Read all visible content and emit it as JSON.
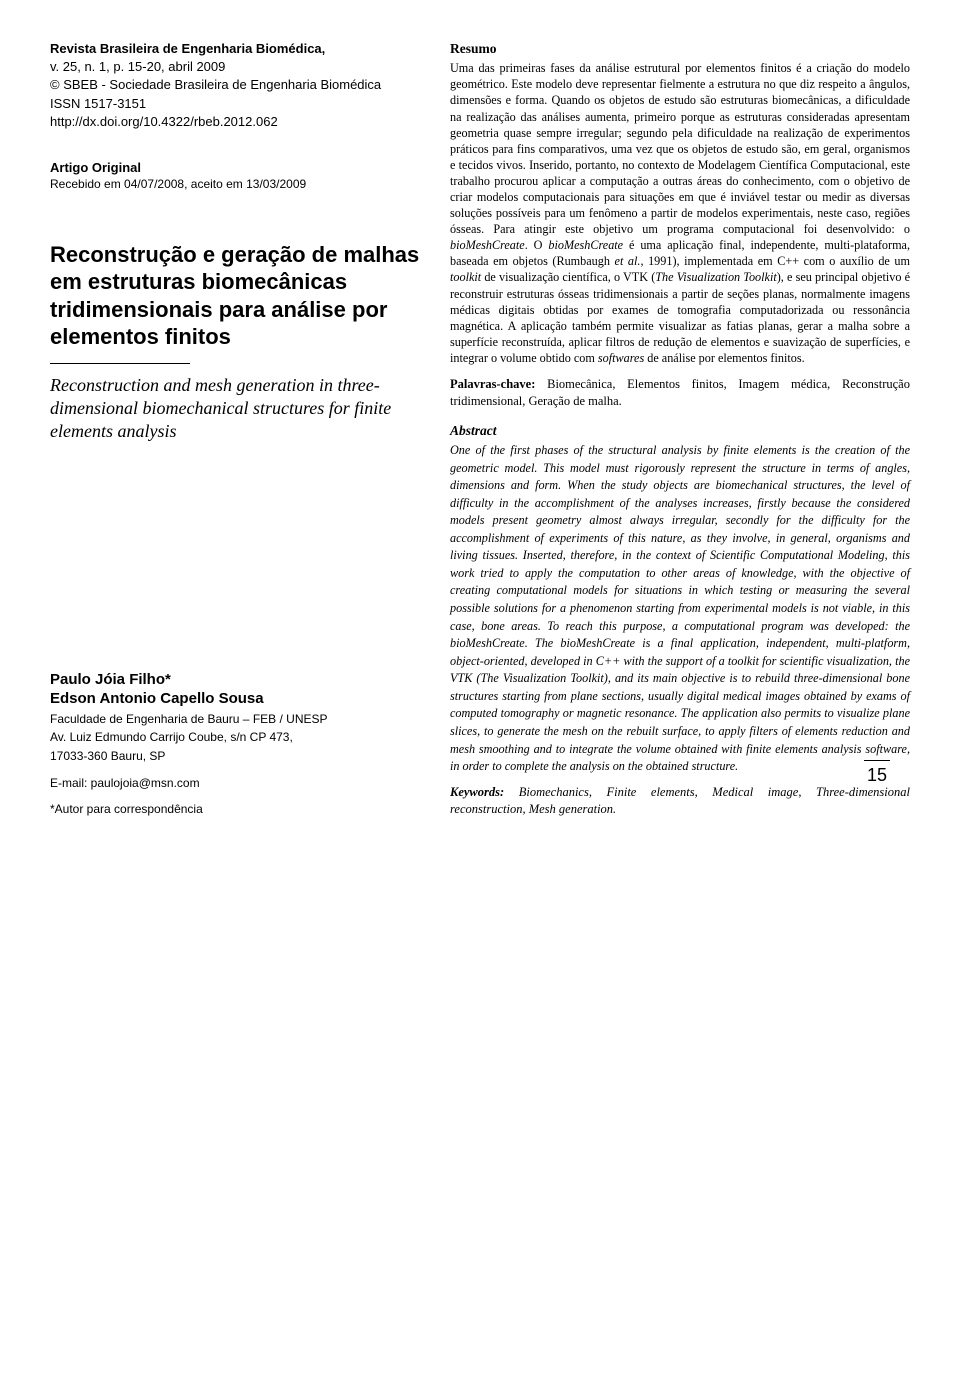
{
  "meta": {
    "journal_title": "Revista Brasileira de Engenharia Biomédica,",
    "issue": "v. 25, n. 1, p. 15-20, abril 2009",
    "copyright": "© SBEB - Sociedade Brasileira de Engenharia Biomédica",
    "issn": "ISSN 1517-3151",
    "doi": "http://dx.doi.org/10.4322/rbeb.2012.062",
    "article_type": "Artigo Original",
    "received": "Recebido em 04/07/2008, aceito em 13/03/2009"
  },
  "titles": {
    "pt": "Reconstrução e geração de malhas em estruturas biomecânicas tridimensionais para análise por elementos finitos",
    "en": "Reconstruction and mesh generation in three-dimensional biomechanical structures for finite elements analysis"
  },
  "authors": {
    "a1": "Paulo Jóia Filho*",
    "a2": "Edson Antonio Capello Sousa",
    "aff1": "Faculdade de Engenharia de Bauru – FEB / UNESP",
    "aff2": "Av. Luiz Edmundo Carrijo Coube, s/n CP 473,",
    "aff3": "17033-360 Bauru, SP",
    "email": "E-mail: paulojoia@msn.com",
    "corresp": "*Autor para correspondência"
  },
  "resumo": {
    "heading": "Resumo",
    "body_a": "Uma das primeiras fases da análise estrutural por elementos finitos é a criação do modelo geométrico. Este modelo deve representar fielmente a estrutura no que diz respeito a ângulos, dimensões e forma. Quando os objetos de estudo são estruturas biomecânicas, a dificuldade na realização das análises aumenta, primeiro porque as estruturas consideradas apresentam geometria quase sempre irregular; segundo pela dificuldade na realização de experimentos práticos para fins comparativos, uma vez que os objetos de estudo são, em geral, organismos e tecidos vivos. Inserido, portanto, no contexto de Modelagem Científica Computacional, este trabalho procurou aplicar a computação a outras áreas do conhecimento, com o objetivo de criar modelos computacionais para situações em que é inviável testar ou medir as diversas soluções possíveis para um fenômeno a partir de modelos experimentais, neste caso, regiões ósseas. Para atingir este objetivo um programa computacional foi desenvolvido: o ",
    "body_b": "bioMeshCreate",
    "body_c": ". O ",
    "body_d": "bioMeshCreate",
    "body_e": " é uma aplicação final, independente, multi-plataforma, baseada em objetos (Rumbaugh ",
    "body_f": "et al.",
    "body_g": ", 1991), implementada em C++ com o auxílio de um ",
    "body_h": "toolkit",
    "body_i": " de visualização científica, o VTK (",
    "body_j": "The Visualization Toolkit",
    "body_k": "), e seu principal objetivo é reconstruir estruturas ósseas tridimensionais a partir de seções planas, normalmente imagens médicas digitais obtidas por exames de tomografia computadorizada ou ressonância magnética. A aplicação também permite visualizar as fatias planas, gerar a malha sobre a superfície reconstruída, aplicar filtros de redução de elementos e suavização de superfícies, e integrar o volume obtido com ",
    "body_l": "softwares",
    "body_m": " de análise por elementos finitos.",
    "kw_label": "Palavras-chave:",
    "kw_text": " Biomecânica, Elementos finitos, Imagem médica, Reconstrução tridimensional, Geração de malha."
  },
  "abstract": {
    "heading": "Abstract",
    "body": "One of the first phases of the structural analysis by finite elements is the creation of the geometric model. This model must rigorously represent the structure in terms of angles, dimensions and form. When the study objects are biomechanical structures, the level of difficulty in the accomplishment of the analyses increases, firstly because the considered models present geometry almost always irregular, secondly for the difficulty for the accomplishment of experiments of this nature, as they involve, in general, organisms and living tissues. Inserted, therefore, in the context of Scientific Computational Modeling, this work tried to apply the computation to other areas of knowledge, with the objective of creating computational models for situations in which testing or measuring the several possible solutions for a phenomenon starting from experimental models is not viable, in this case, bone areas. To reach this purpose, a computational program was developed: the bioMeshCreate. The bioMeshCreate is a final application, independent, multi-platform, object-oriented, developed in C++ with the support of a toolkit for scientific visualization, the VTK (The Visualization Toolkit), and its main objective is to rebuild three-dimensional bone structures starting from plane sections, usually digital medical images obtained by exams of computed tomography or magnetic resonance. The application also permits to visualize plane slices, to generate the mesh on the rebuilt surface, to apply filters of elements reduction and mesh smoothing and to integrate the volume obtained with finite elements analysis software, in order to complete the analysis on the obtained structure.",
    "kw_label": "Keywords:",
    "kw_text": " Biomechanics, Finite elements, Medical image, Three-dimensional reconstruction, Mesh generation."
  },
  "page_number": "15"
}
